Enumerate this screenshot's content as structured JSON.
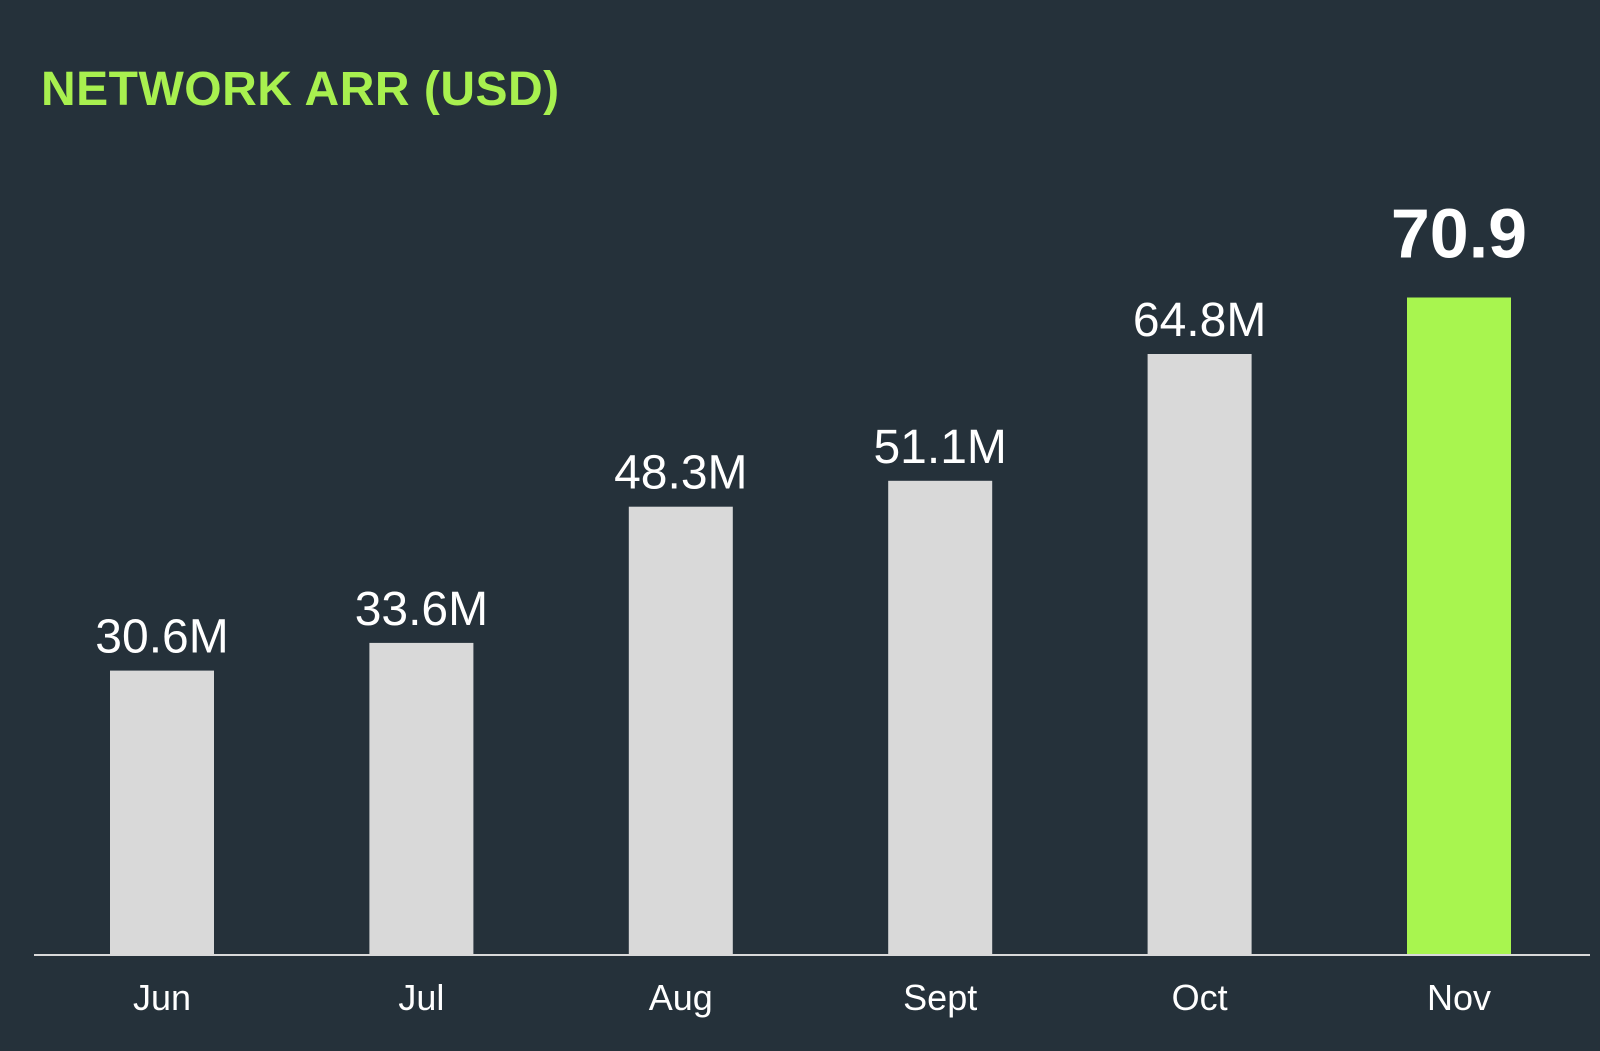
{
  "chart_data": {
    "type": "bar",
    "title": "NETWORK ARR (USD)",
    "xlabel": "",
    "ylabel": "",
    "categories": [
      "Jun",
      "Jul",
      "Aug",
      "Sept",
      "Oct",
      "Nov"
    ],
    "values": [
      30.6,
      33.6,
      48.3,
      51.1,
      64.8,
      70.9
    ],
    "value_labels": [
      "30.6M",
      "33.6M",
      "48.3M",
      "51.1M",
      "64.8M",
      "70.9"
    ],
    "highlight_index": 5,
    "grid": false,
    "legend": "none"
  },
  "colors": {
    "background": "#25313a",
    "title": "#a8f04f",
    "bar": "#d9d9d9",
    "highlight_bar": "#a8f54f",
    "axis": "#d9d9d9",
    "text": "#ffffff"
  }
}
